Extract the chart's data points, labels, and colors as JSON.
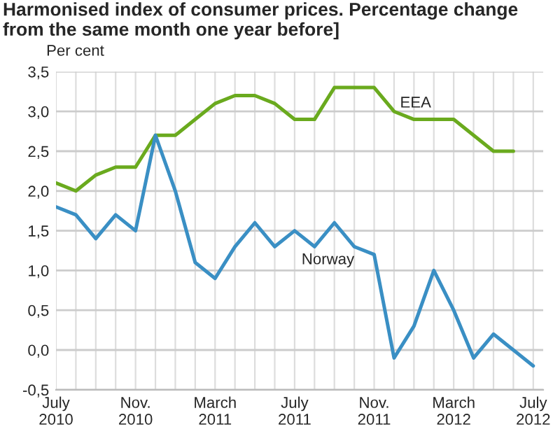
{
  "chart_data": {
    "type": "line",
    "title": "Harmonised index of consumer prices. Percentage change from the same month one year before]",
    "ylabel": "Per cent",
    "categories": [
      "July\n2010",
      null,
      null,
      null,
      "Nov.\n2010",
      null,
      null,
      null,
      "March\n2011",
      null,
      null,
      null,
      "July\n2011",
      null,
      null,
      null,
      "Nov.\n2011",
      null,
      null,
      null,
      "March\n2012",
      null,
      null,
      null,
      "July\n2012"
    ],
    "series": [
      {
        "name": "EEA",
        "color": "#6aaa1e",
        "values": [
          2.1,
          2.0,
          2.2,
          2.3,
          2.3,
          2.7,
          2.7,
          2.9,
          3.1,
          3.2,
          3.2,
          3.1,
          2.9,
          2.9,
          3.3,
          3.3,
          3.3,
          3.0,
          2.9,
          2.9,
          2.9,
          2.7,
          2.5,
          2.5,
          null
        ]
      },
      {
        "name": "Norway",
        "color": "#3a8fc4",
        "values": [
          1.8,
          1.7,
          1.4,
          1.7,
          1.5,
          2.7,
          2.0,
          1.1,
          0.9,
          1.3,
          1.6,
          1.3,
          1.5,
          1.3,
          1.6,
          1.3,
          1.2,
          -0.1,
          0.3,
          1.0,
          0.5,
          -0.1,
          0.2,
          0.0,
          -0.2
        ]
      }
    ],
    "ylim": [
      -0.5,
      3.5
    ],
    "yticks": [
      {
        "value": -0.5,
        "label": "-0,5"
      },
      {
        "value": 0,
        "label": "0,0"
      },
      {
        "value": 0.5,
        "label": "0,5"
      },
      {
        "value": 1,
        "label": "1,0"
      },
      {
        "value": 1.5,
        "label": "1,5"
      },
      {
        "value": 2,
        "label": "2,0"
      },
      {
        "value": 2.5,
        "label": "2,5"
      },
      {
        "value": 3,
        "label": "3,0"
      },
      {
        "value": 3.5,
        "label": "3,5"
      }
    ],
    "grid": true,
    "legend": false,
    "marker": "none",
    "line_style": "solid"
  }
}
